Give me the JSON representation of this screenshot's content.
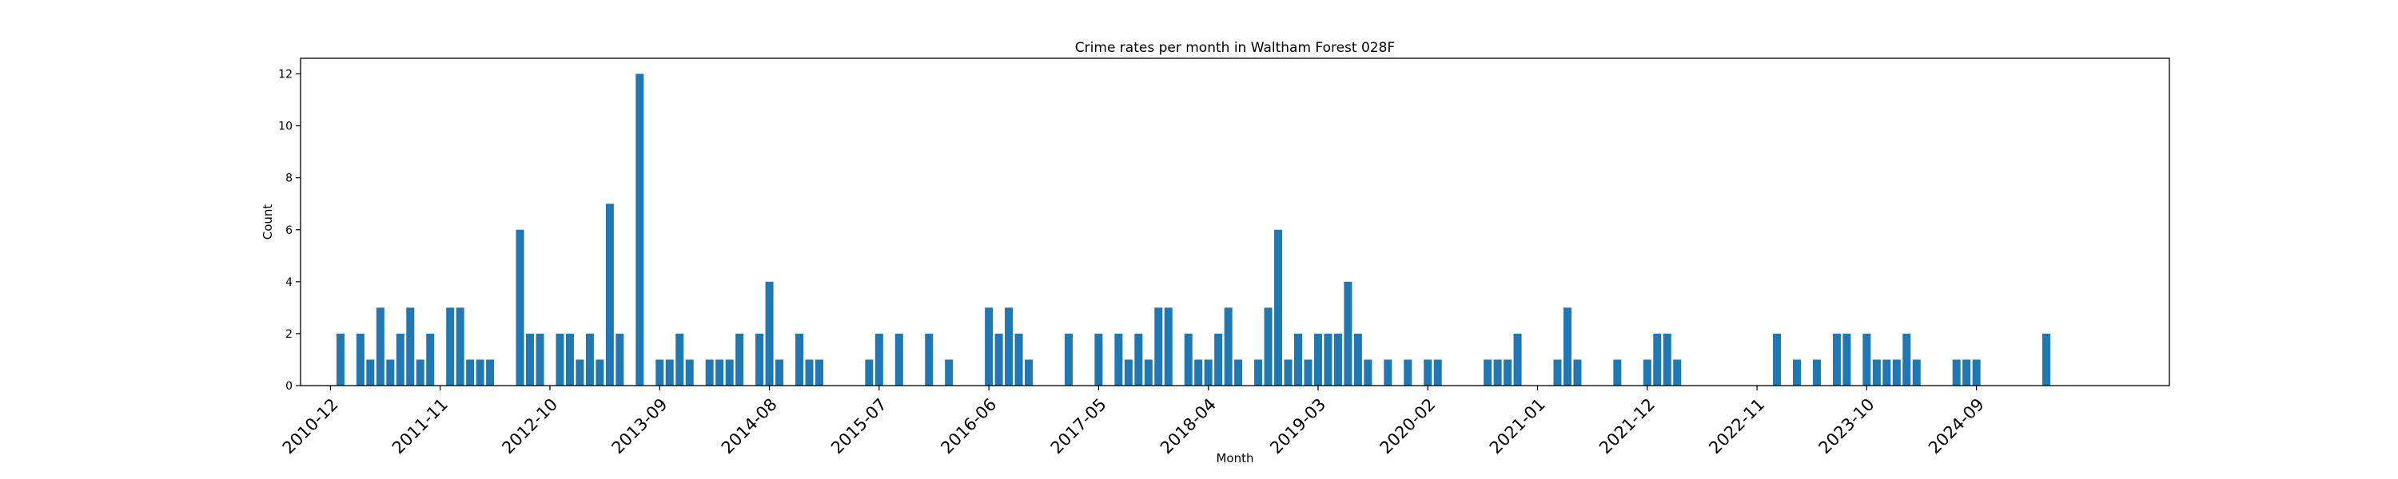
{
  "chart_data": {
    "type": "bar",
    "title": "Crime rates per month in Waltham Forest 028F",
    "xlabel": "Month",
    "ylabel": "Count",
    "ylim": [
      0,
      12.6
    ],
    "yticks": [
      0,
      2,
      4,
      6,
      8,
      10,
      12
    ],
    "xtick_labels": [
      "2010-12",
      "2011-11",
      "2012-10",
      "2013-09",
      "2014-08",
      "2015-07",
      "2016-06",
      "2017-05",
      "2018-04",
      "2019-03",
      "2020-02",
      "2021-01",
      "2021-12",
      "2022-11",
      "2023-10",
      "2024-09"
    ],
    "grid": false,
    "bar_color": "#1f77b4",
    "series": [
      {
        "x": [
          "2011-01",
          "2011-03",
          "2011-04",
          "2011-05",
          "2011-06",
          "2011-07",
          "2011-08",
          "2011-09",
          "2011-10",
          "2011-12",
          "2012-01",
          "2012-02",
          "2012-03",
          "2012-04",
          "2012-07",
          "2012-08",
          "2012-09",
          "2012-11",
          "2012-12",
          "2013-01",
          "2013-02",
          "2013-03",
          "2013-04",
          "2013-05",
          "2013-07",
          "2013-09",
          "2013-10",
          "2013-11",
          "2013-12",
          "2014-02",
          "2014-03",
          "2014-04",
          "2014-05",
          "2014-07",
          "2014-08",
          "2014-09",
          "2014-11",
          "2014-12",
          "2015-01",
          "2015-06",
          "2015-07",
          "2015-09",
          "2015-12",
          "2016-02",
          "2016-06",
          "2016-07",
          "2016-08",
          "2016-09",
          "2016-10",
          "2017-02",
          "2017-05",
          "2017-07",
          "2017-08",
          "2017-09",
          "2017-10",
          "2017-11",
          "2017-12",
          "2018-02",
          "2018-03",
          "2018-04",
          "2018-05",
          "2018-06",
          "2018-07",
          "2018-09",
          "2018-10",
          "2018-11",
          "2018-12",
          "2019-01",
          "2019-02",
          "2019-03",
          "2019-04",
          "2019-05",
          "2019-06",
          "2019-07",
          "2019-08",
          "2019-10",
          "2019-12",
          "2020-02",
          "2020-03",
          "2020-08",
          "2020-09",
          "2020-10",
          "2020-11",
          "2021-03",
          "2021-04",
          "2021-05",
          "2021-09",
          "2021-12",
          "2022-01",
          "2022-02",
          "2022-03",
          "2023-01",
          "2023-03",
          "2023-05",
          "2023-07",
          "2023-08",
          "2023-10",
          "2023-11",
          "2023-12",
          "2024-01",
          "2024-02",
          "2024-03",
          "2024-07",
          "2024-08",
          "2024-09",
          "2025-04"
        ],
        "values": [
          2,
          2,
          1,
          3,
          1,
          2,
          3,
          1,
          2,
          3,
          3,
          1,
          1,
          1,
          6,
          2,
          2,
          2,
          2,
          1,
          2,
          1,
          7,
          2,
          12,
          1,
          1,
          2,
          1,
          1,
          1,
          1,
          2,
          2,
          4,
          1,
          2,
          1,
          1,
          1,
          2,
          2,
          2,
          1,
          3,
          2,
          3,
          2,
          1,
          2,
          2,
          2,
          1,
          2,
          1,
          3,
          3,
          2,
          1,
          1,
          2,
          3,
          1,
          1,
          3,
          6,
          1,
          2,
          1,
          2,
          2,
          2,
          4,
          2,
          1,
          1,
          1,
          1,
          1,
          1,
          1,
          1,
          2,
          1,
          3,
          1,
          1,
          1,
          2,
          2,
          1,
          2,
          1,
          1,
          2,
          2,
          2,
          1,
          1,
          1,
          2,
          1,
          1,
          1,
          1,
          2
        ]
      }
    ]
  }
}
